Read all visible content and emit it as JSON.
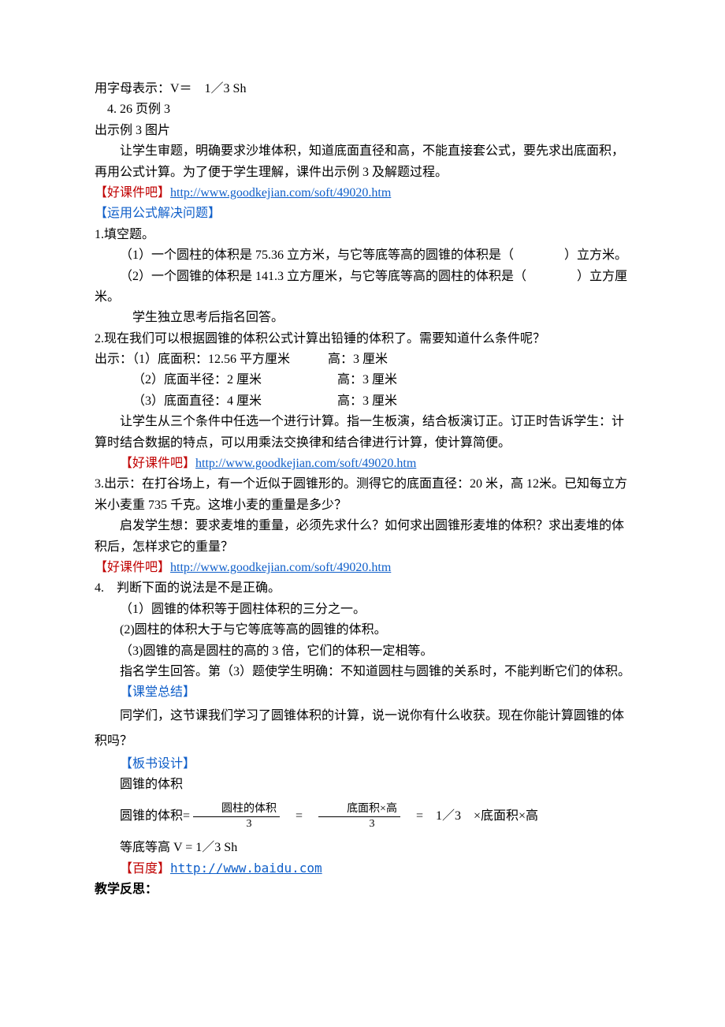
{
  "l1": "用字母表示：V＝　1／3 Sh",
  "l2": "　4. 26 页例 3",
  "l3": "出示例 3 图片",
  "l4": "让学生审题，明确要求沙堆体积，知道底面直径和高，不能直接套公式，要先求出底面积，再用公式计算。为了便于学生理解，课件出示例 3 及解题过程。",
  "l5_prefix": "【好课件吧】",
  "l5_link": "http://www.goodkejian.com/soft/49020.htm",
  "l6": "【运用公式解决问题】",
  "l7": "1.填空题。",
  "l8": "（1）一个圆柱的体积是 75.36 立方米，与它等底等高的圆锥的体积是（　　　　）立方米。",
  "l9": "（2）一个圆锥的体积是 141.3 立方厘米，与它等底等高的圆柱的体积是（　　　　）立方厘米。",
  "l10": "学生独立思考后指名回答。",
  "l11": "2.现在我们可以根据圆锥的体积公式计算出铅锤的体积了。需要知道什么条件呢？",
  "l12": "出示：（1）底面积：12.56 平方厘米　　　高：3 厘米",
  "l13": "（2）底面半径：2 厘米　　　　　　高：3 厘米",
  "l14": "（3）底面直径：4 厘米　　　　　　高：3 厘米",
  "l15": "让学生从三个条件中任选一个进行计算。指一生板演，结合板演订正。订正时告诉学生：计算时结合数据的特点，可以用乘法交换律和结合律进行计算，使计算简便。",
  "l16_prefix": "【好课件吧】",
  "l16_link": "http://www.goodkejian.com/soft/49020.htm",
  "l17": "3.出示：在打谷场上，有一个近似于圆锥形的。测得它的底面直径：20 米，高 12米。已知每立方米小麦重 735 千克。这堆小麦的重量是多少？",
  "l18": "启发学生想：要求麦堆的重量，必须先求什么？如何求出圆锥形麦堆的体积？求出麦堆的体积后，怎样求它的重量？",
  "l19_prefix": "【好课件吧】",
  "l19_link": "http://www.goodkejian.com/soft/49020.htm",
  "l20": "4.　判断下面的说法是不是正确。",
  "l21": "（1）圆锥的体积等于圆柱体积的三分之一。",
  "l22": "(2)圆柱的体积大于与它等底等高的圆锥的体积。",
  "l23": "（3)圆锥的高是圆柱的高的 3 倍，它们的体积一定相等。",
  "l24": "指名学生回答。第（3）题使学生明确：不知道圆柱与圆锥的关系时，不能判断它们的体积。",
  "l25": "【课堂总结】",
  "l26": "同学们，这节课我们学习了圆锥体积的计算，说一说你有什么收获。现在你能计算圆锥的体积吗？",
  "l27": "【板书设计】",
  "l28": "圆锥的体积",
  "formula": {
    "lead": "圆锥的体积=",
    "num1": "圆柱的体积",
    "den1": "3",
    "eq1": "　=　",
    "num2": "底面积×高",
    "den2": "3",
    "tail": "　=　1／3　×底面积×高"
  },
  "l30": "等底等高 V =  1／3 Sh",
  "l31_prefix": "【百度】",
  "l31_link": "http://www.baidu.com",
  "l32": "教学反思："
}
